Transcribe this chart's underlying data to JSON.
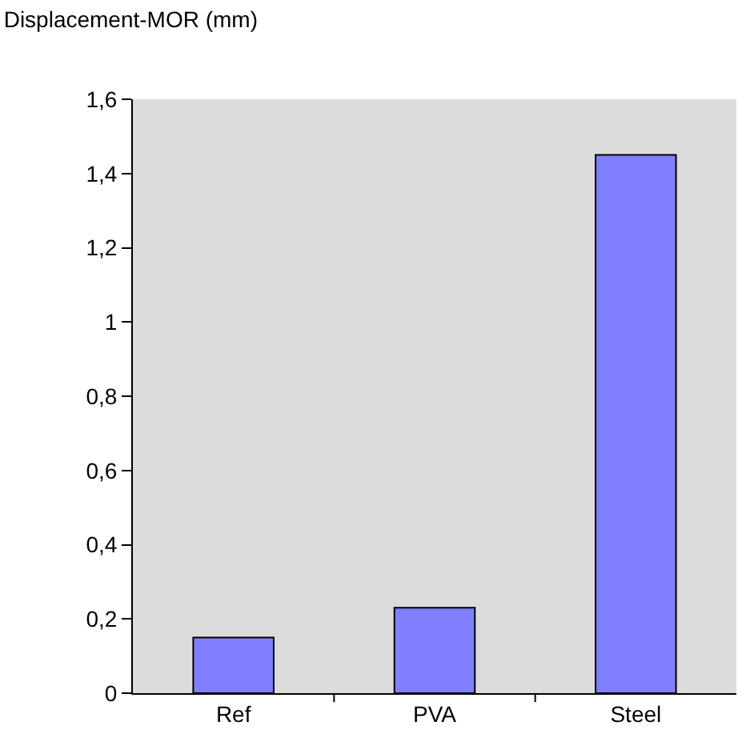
{
  "chart_data": {
    "type": "bar",
    "title": "Displacement-MOR (mm)",
    "categories": [
      "Ref",
      "PVA",
      "Steel"
    ],
    "values": [
      0.15,
      0.23,
      1.45
    ],
    "color": "#8080ff",
    "ylim": [
      0,
      1.6
    ],
    "yticks": [
      0,
      {
        "value": 0.2,
        "label": "0,2"
      },
      {
        "value": 0.4,
        "label": "0,4"
      },
      {
        "value": 0.6,
        "label": "0,6"
      },
      {
        "value": 0.8,
        "label": "0,8"
      },
      1,
      {
        "value": 1.2,
        "label": "1,2"
      },
      {
        "value": 1.4,
        "label": "1,4"
      },
      {
        "value": 1.6,
        "label": "1,6"
      }
    ],
    "grid": false,
    "legend": false
  }
}
